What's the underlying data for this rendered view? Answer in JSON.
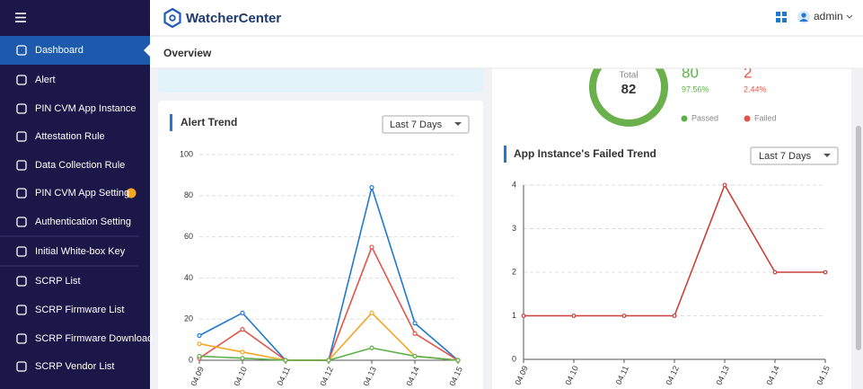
{
  "header": {
    "logo": "WatcherCenter",
    "user": "admin"
  },
  "sidebar": {
    "items": [
      "Dashboard",
      "Alert",
      "PIN CVM App Instance",
      "Attestation Rule",
      "Data Collection Rule",
      "PIN CVM App Setting",
      "Authentication Setting",
      "Initial White-box Key",
      "SCRP List",
      "SCRP Firmware List",
      "SCRP Firmware Download",
      "SCRP Vendor List"
    ]
  },
  "breadcrumb": "Overview",
  "summary": {
    "total_label": "Total",
    "total": 82,
    "passed": 80,
    "passed_pct": "97.56%",
    "failed": 2,
    "failed_pct": "2.44%",
    "passed_label": "Passed",
    "failed_label": "Failed"
  },
  "chart_data": [
    {
      "type": "line",
      "title": "Alert Trend",
      "filter": "Last 7 Days",
      "categories": [
        "04.09",
        "04.10",
        "04.11",
        "04.12",
        "04.13",
        "04.14",
        "04.15"
      ],
      "series": [
        {
          "color": "#1f78d1",
          "values": [
            12,
            23,
            0,
            0,
            84,
            18,
            0
          ]
        },
        {
          "color": "#e0554b",
          "values": [
            1,
            15,
            0,
            0,
            55,
            13,
            0
          ]
        },
        {
          "color": "#f5a623",
          "values": [
            8,
            4,
            0,
            0,
            23,
            2,
            0
          ]
        },
        {
          "color": "#5cb046",
          "values": [
            2,
            1,
            0,
            0,
            6,
            2,
            0
          ]
        }
      ],
      "ylim": [
        0,
        100
      ],
      "yticks": [
        0,
        20,
        40,
        60,
        80,
        100
      ],
      "grid": true
    },
    {
      "type": "line",
      "title": "App Instance's Failed Trend",
      "filter": "Last 7 Days",
      "categories": [
        "04.09",
        "04.10",
        "04.11",
        "04.12",
        "04.13",
        "04.14",
        "04.15"
      ],
      "series": [
        {
          "color": "#c9403a",
          "values": [
            1,
            1,
            1,
            1,
            4,
            2,
            2
          ]
        }
      ],
      "ylim": [
        0,
        4
      ],
      "yticks": [
        0,
        1,
        2,
        3,
        4
      ],
      "grid": true
    }
  ]
}
